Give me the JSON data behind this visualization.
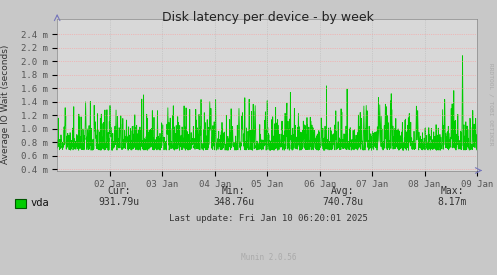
{
  "title": "Disk latency per device - by week",
  "ylabel": "Average IO Wait (seconds)",
  "background_color": "#c8c8c8",
  "plot_bg_color": "#d8d8d8",
  "grid_color_h": "#ff9999",
  "grid_color_v": "#aaaaaa",
  "line_color": "#00cc00",
  "ylim": [
    0.00038,
    0.00262
  ],
  "yticks": [
    0.0004,
    0.0006,
    0.0008,
    0.001,
    0.0012,
    0.0014,
    0.0016,
    0.0018,
    0.002,
    0.0022,
    0.0024
  ],
  "ytick_labels": [
    "0.4 m",
    "0.6 m",
    "0.8 m",
    "1.0 m",
    "1.2 m",
    "1.4 m",
    "1.6 m",
    "1.8 m",
    "2.0 m",
    "2.2 m",
    "2.4 m"
  ],
  "xtick_labels": [
    "02 Jan",
    "03 Jan",
    "04 Jan",
    "05 Jan",
    "06 Jan",
    "07 Jan",
    "08 Jan",
    "09 Jan"
  ],
  "legend_label": "vda",
  "legend_color": "#00cc00",
  "cur_val": "931.79u",
  "min_val": "348.76u",
  "avg_val": "740.78u",
  "max_val": "8.17m",
  "last_update": "Last update: Fri Jan 10 06:20:01 2025",
  "munin_version": "Munin 2.0.56",
  "rrdtool_text": "RRDTOOL / TOBI OETIKER",
  "arrow_color": "#7777bb",
  "tick_color": "#555555"
}
